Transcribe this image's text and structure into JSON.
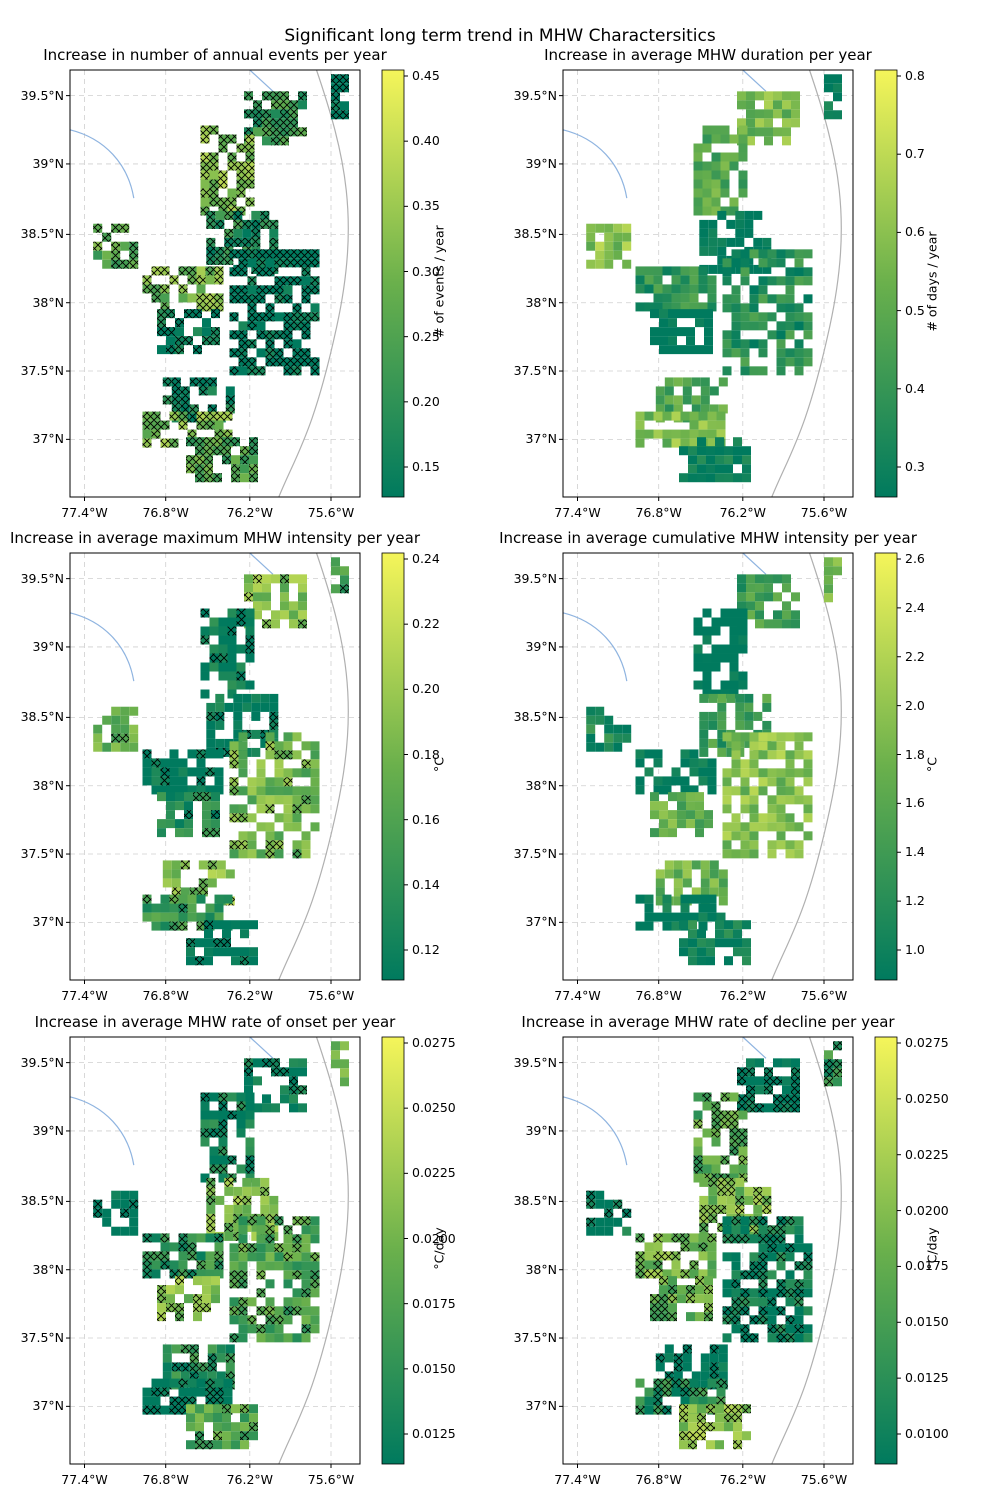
{
  "suptitle": "Significant long term trend in MHW Charactersitics",
  "x_ticks": [
    "77.4°W",
    "76.8°W",
    "76.2°W",
    "75.6°W"
  ],
  "y_ticks": [
    "39.5°N",
    "39°N",
    "38.5°N",
    "38°N",
    "37.5°N",
    "37°N"
  ],
  "colors": {
    "low": "#007a5e",
    "mid": "#6ab04c",
    "high": "#f5f55a",
    "coast": "#b0b0b0",
    "river": "#8fb4e0",
    "grid": "#cfcfcf"
  },
  "panels": [
    {
      "title": "Increase in number of annual events per year",
      "cb_label": "# of events / year",
      "cb_ticks": [
        "0.45",
        "0.40",
        "0.35",
        "0.30",
        "0.25",
        "0.20",
        "0.15"
      ]
    },
    {
      "title": "Increase in average MHW duration per year",
      "cb_label": "# of days / year",
      "cb_ticks": [
        "0.8",
        "0.7",
        "0.6",
        "0.5",
        "0.4",
        "0.3"
      ]
    },
    {
      "title": "Increase in average maximum MHW intensity per year",
      "cb_label": "°C",
      "cb_ticks": [
        "0.24",
        "0.22",
        "0.20",
        "0.18",
        "0.16",
        "0.14",
        "0.12"
      ]
    },
    {
      "title": "Increase in average cumulative MHW intensity per year",
      "cb_label": "°C",
      "cb_ticks": [
        "2.6",
        "2.4",
        "2.2",
        "2.0",
        "1.8",
        "1.6",
        "1.4",
        "1.2",
        "1.0"
      ]
    },
    {
      "title": "Increase in average MHW rate of onset per year",
      "cb_label": "°C/day",
      "cb_ticks": [
        "0.0275",
        "0.0250",
        "0.0225",
        "0.0200",
        "0.0175",
        "0.0150",
        "0.0125"
      ]
    },
    {
      "title": "Increase in average MHW rate of decline per year",
      "cb_label": "°C/day",
      "cb_ticks": [
        "0.0275",
        "0.0250",
        "0.0225",
        "0.0200",
        "0.0175",
        "0.0150",
        "0.0125",
        "0.0100"
      ]
    }
  ]
}
